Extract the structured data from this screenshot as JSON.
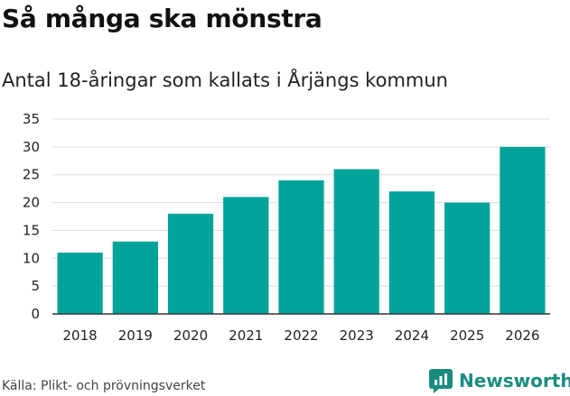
{
  "title": "Så många ska mönstra",
  "subtitle": "Antal 18-åringar som kallats i Årjängs kommun",
  "source": "Källa: Plikt- och prövningsverket",
  "brand": {
    "name": "Newsworthy",
    "icon": "newsworthy-logo-icon",
    "color": "#1a8c7e"
  },
  "colors": {
    "bar": "#00a39a",
    "grid": "#dddddd",
    "axis": "#333333"
  },
  "chart_data": {
    "type": "bar",
    "title": "Så många ska mönstra",
    "subtitle": "Antal 18-åringar som kallats i Årjängs kommun",
    "xlabel": "",
    "ylabel": "",
    "categories": [
      "2018",
      "2019",
      "2020",
      "2021",
      "2022",
      "2023",
      "2024",
      "2025",
      "2026"
    ],
    "values": [
      11,
      13,
      18,
      21,
      24,
      26,
      22,
      20,
      30
    ],
    "ylim": [
      0,
      35
    ],
    "yticks": [
      0,
      5,
      10,
      15,
      20,
      25,
      30,
      35
    ],
    "grid": true
  }
}
